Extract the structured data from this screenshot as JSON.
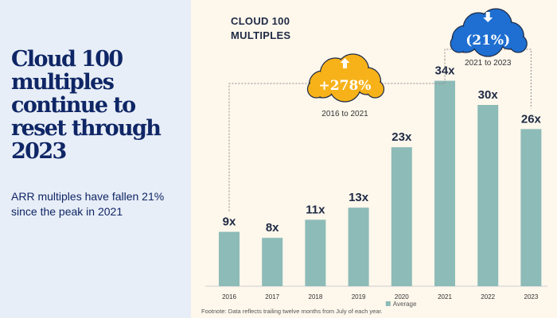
{
  "headline": "Cloud 100 multiples continue to reset through 2023",
  "subheadline": "ARR multiples have fallen 21% since the peak in 2021",
  "footnote": "Footnote: Data reflects trailing twelve months from July of each year.",
  "colors": {
    "left_bg": "#e8eef7",
    "right_bg": "#fdf7ec",
    "bar": "#8dbbb7",
    "up_cloud": "#f7b21a",
    "down_cloud": "#1e6fd1",
    "headline": "#0f2666"
  },
  "chart_data": {
    "type": "bar",
    "title": "CLOUD 100\nMULTIPLES",
    "categories": [
      "2016",
      "2017",
      "2018",
      "2019",
      "2020",
      "2021",
      "2022",
      "2023"
    ],
    "series": [
      {
        "name": "Average",
        "values": [
          9,
          8,
          11,
          13,
          23,
          34,
          30,
          26
        ]
      }
    ],
    "data_labels": [
      "9x",
      "8x",
      "11x",
      "13x",
      "23x",
      "34x",
      "30x",
      "26x"
    ],
    "ylim": [
      0,
      34
    ],
    "grid": false,
    "legend_position": "bottom-center",
    "annotations": [
      {
        "value": "+278%",
        "label": "2016 to 2021",
        "icon": "arrow-up-icon",
        "color": "#f7b21a",
        "from": "2016",
        "to": "2021"
      },
      {
        "value": "(21%)",
        "label": "2021 to 2023",
        "icon": "arrow-down-icon",
        "color": "#1e6fd1",
        "from": "2021",
        "to": "2023"
      }
    ]
  }
}
